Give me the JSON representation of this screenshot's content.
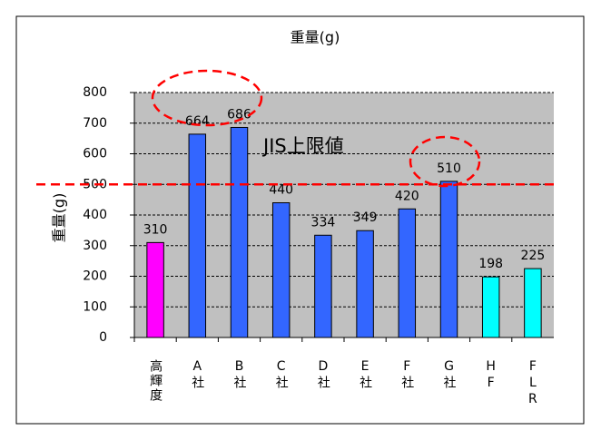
{
  "chart_data": {
    "type": "bar",
    "title": "重量(g)",
    "y_label": "重量(g)",
    "categories": [
      "高輝度",
      "A社",
      "B社",
      "C社",
      "D社",
      "E社",
      "F社",
      "G社",
      "HF",
      "FLR"
    ],
    "values": [
      310,
      664,
      686,
      440,
      334,
      349,
      420,
      510,
      198,
      225
    ],
    "colors": [
      "#ff00ff",
      "#3366ff",
      "#3366ff",
      "#3366ff",
      "#3366ff",
      "#3366ff",
      "#3366ff",
      "#3366ff",
      "#00ffff",
      "#00ffff"
    ],
    "ylim": [
      0,
      800
    ],
    "yticks": [
      0,
      100,
      200,
      300,
      400,
      500,
      600,
      700,
      800
    ],
    "grid": true,
    "reference_line": {
      "value": 500,
      "label": "JIS上限値",
      "color": "#ff0000"
    }
  }
}
